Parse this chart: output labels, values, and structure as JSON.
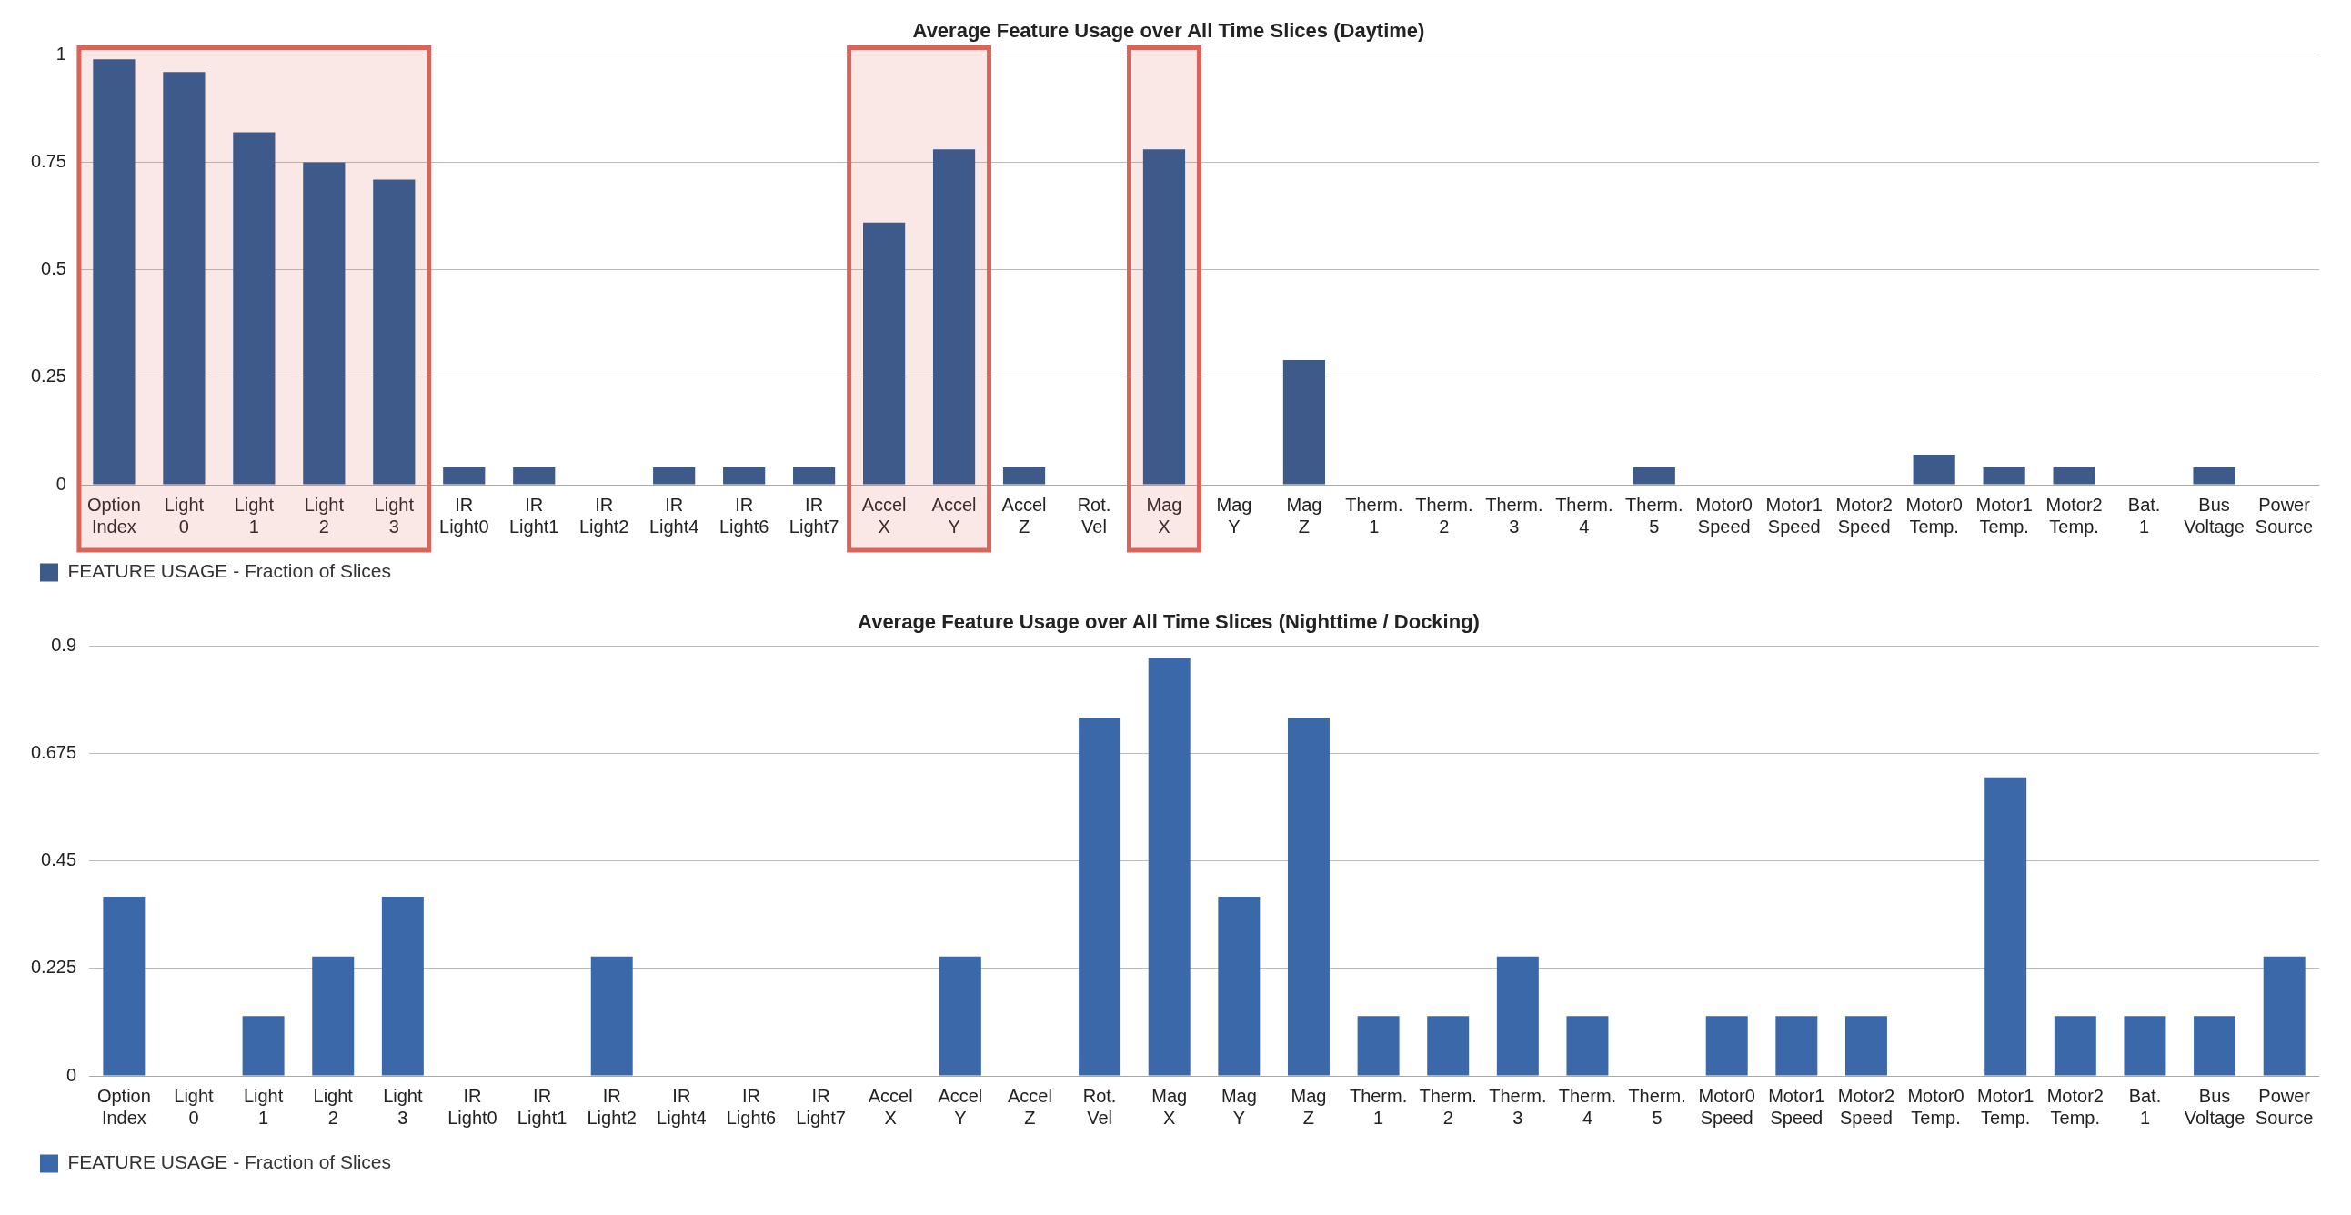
{
  "chart_data": [
    {
      "type": "bar",
      "title": "Average Feature Usage over All Time Slices (Daytime)",
      "categories": [
        "Option Index",
        "Light 0",
        "Light 1",
        "Light 2",
        "Light 3",
        "IR Light0",
        "IR Light1",
        "IR Light2",
        "IR Light4",
        "IR Light6",
        "IR Light7",
        "Accel X",
        "Accel Y",
        "Accel Z",
        "Rot. Vel",
        "Mag X",
        "Mag Y",
        "Mag Z",
        "Therm. 1",
        "Therm. 2",
        "Therm. 3",
        "Therm. 4",
        "Therm. 5",
        "Motor0 Speed",
        "Motor1 Speed",
        "Motor2 Speed",
        "Motor0 Temp.",
        "Motor1 Temp.",
        "Motor2 Temp.",
        "Bat. 1",
        "Bus Voltage",
        "Power Source"
      ],
      "series": [
        {
          "name": "FEATURE USAGE - Fraction of Slices",
          "color": "#3d5a8a",
          "values": [
            0.99,
            0.96,
            0.82,
            0.75,
            0.71,
            0.04,
            0.04,
            0,
            0.04,
            0.04,
            0.04,
            0.61,
            0.78,
            0.04,
            0,
            0.78,
            0,
            0.29,
            0,
            0,
            0,
            0,
            0.04,
            0,
            0,
            0,
            0.07,
            0.04,
            0.04,
            0,
            0.04,
            0
          ]
        }
      ],
      "ylim": [
        0,
        1
      ],
      "yticks": [
        0,
        0.25,
        0.5,
        0.75,
        1
      ],
      "grid": "y",
      "legend": "bottom left",
      "bands": [
        {
          "axis": "x",
          "from": "Option Index",
          "to": "Light 3",
          "color": "#d9645a"
        },
        {
          "axis": "x",
          "from": "Accel X",
          "to": "Accel Y",
          "color": "#d9645a"
        },
        {
          "axis": "x",
          "from": "Mag X",
          "to": "Mag X",
          "color": "#d9645a"
        }
      ]
    },
    {
      "type": "bar",
      "title": "Average Feature Usage over All Time Slices (Nighttime / Docking)",
      "categories": [
        "Option Index",
        "Light 0",
        "Light 1",
        "Light 2",
        "Light 3",
        "IR Light0",
        "IR Light1",
        "IR Light2",
        "IR Light4",
        "IR Light6",
        "IR Light7",
        "Accel X",
        "Accel Y",
        "Accel Z",
        "Rot. Vel",
        "Mag X",
        "Mag Y",
        "Mag Z",
        "Therm. 1",
        "Therm. 2",
        "Therm. 3",
        "Therm. 4",
        "Therm. 5",
        "Motor0 Speed",
        "Motor1 Speed",
        "Motor2 Speed",
        "Motor0 Temp.",
        "Motor1 Temp.",
        "Motor2 Temp.",
        "Bat. 1",
        "Bus Voltage",
        "Power Source"
      ],
      "series": [
        {
          "name": "FEATURE USAGE - Fraction of Slices",
          "color": "#3a68a8",
          "values": [
            0.375,
            0,
            0.125,
            0.25,
            0.375,
            0,
            0,
            0.25,
            0,
            0,
            0,
            0,
            0.25,
            0,
            0.75,
            0.875,
            0.375,
            0.75,
            0.125,
            0.125,
            0.25,
            0.125,
            0,
            0.125,
            0.125,
            0.125,
            0,
            0.625,
            0.125,
            0.125,
            0.125,
            0.25
          ]
        }
      ],
      "ylim": [
        0,
        0.9
      ],
      "yticks": [
        0,
        0.225,
        0.45,
        0.675,
        0.9
      ],
      "grid": "y",
      "legend": "bottom left"
    }
  ]
}
